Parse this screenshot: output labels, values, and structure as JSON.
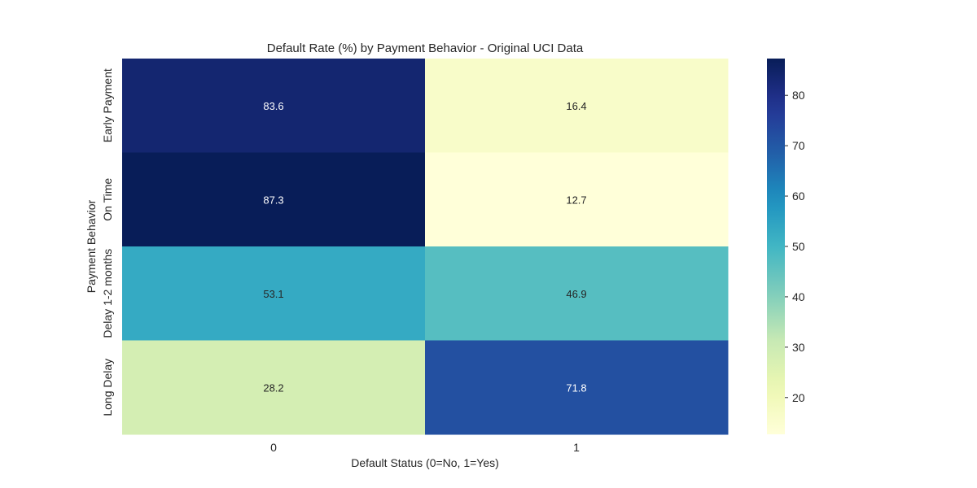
{
  "chart_data": {
    "type": "heatmap",
    "title": "Default Rate (%) by Payment Behavior - Original UCI Data",
    "xlabel": "Default Status (0=No, 1=Yes)",
    "ylabel": "Payment Behavior",
    "x_categories": [
      "0",
      "1"
    ],
    "y_categories": [
      "Early Payment",
      "On Time",
      "Delay 1-2 months",
      "Long Delay"
    ],
    "values": [
      [
        83.6,
        16.4
      ],
      [
        87.3,
        12.7
      ],
      [
        53.1,
        46.9
      ],
      [
        28.2,
        71.8
      ]
    ],
    "colormap": "YlGnBu",
    "colorbar": {
      "min": 12.7,
      "max": 87.3,
      "ticks": [
        20,
        30,
        40,
        50,
        60,
        70,
        80
      ]
    },
    "grid": false
  }
}
